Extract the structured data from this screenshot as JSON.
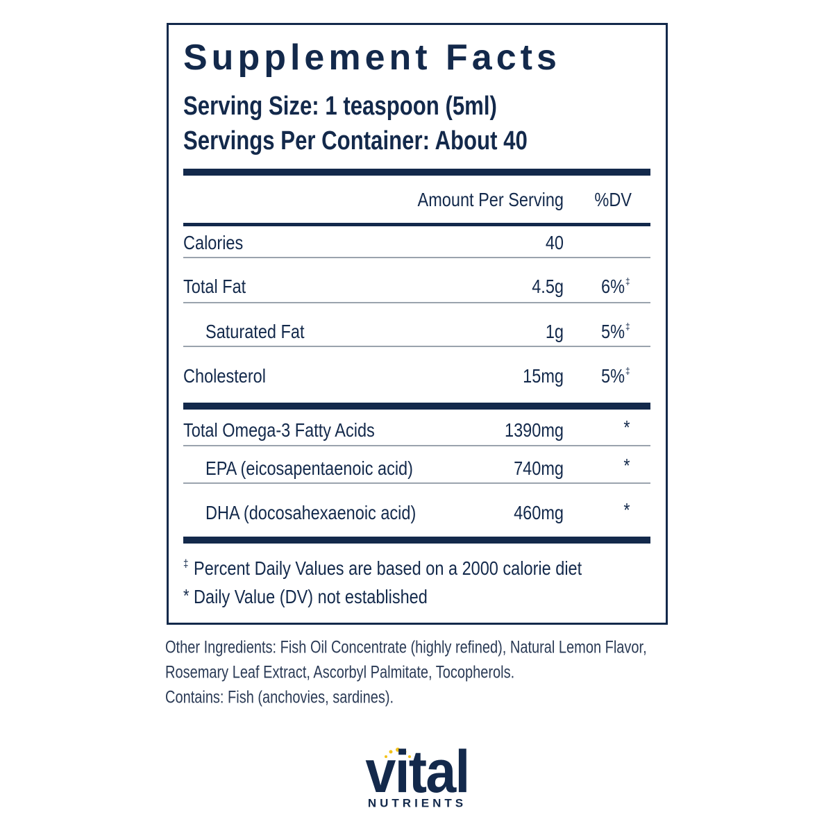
{
  "panel": {
    "title": "Supplement Facts",
    "serving_size": "Serving Size: 1 teaspoon (5ml)",
    "servings_per_container": "Servings Per Container: About 40",
    "header": {
      "amount": "Amount Per Serving",
      "dv": "%DV"
    },
    "groups": [
      {
        "rows": [
          {
            "name": "Calories",
            "amount": "40"
          },
          {
            "name": "Total Fat",
            "amount": "4.5g",
            "dv": "6%",
            "dv_mark": "‡"
          },
          {
            "name": "Saturated Fat",
            "amount": "1g",
            "dv": "5%",
            "dv_mark": "‡",
            "indent": true
          },
          {
            "name": "Cholesterol",
            "amount": "15mg",
            "dv": "5%",
            "dv_mark": "‡"
          }
        ]
      },
      {
        "rows": [
          {
            "name": "Total Omega-3 Fatty Acids",
            "amount": "1390mg",
            "dv": "*"
          },
          {
            "name": "EPA (eicosapentaenoic acid)",
            "amount": "740mg",
            "dv": "*",
            "indent": true
          },
          {
            "name": "DHA (docosahexaenoic acid)",
            "amount": "460mg",
            "dv": "*",
            "indent": true
          }
        ]
      }
    ],
    "footnotes": [
      {
        "symbol": "‡",
        "text": "Percent Daily Values are based on a 2000 calorie diet"
      },
      {
        "symbol": "*",
        "text": "Daily Value (DV) not established"
      }
    ]
  },
  "other_ingredients": [
    "Other Ingredients: Fish Oil Concentrate (highly refined), Natural Lemon Flavor,",
    "Rosemary Leaf Extract, Ascorbyl Palmitate, Tocopherols.",
    "Contains: Fish (anchovies, sardines)."
  ],
  "logo": {
    "name": "vital",
    "tagline": "NUTRIENTS"
  }
}
